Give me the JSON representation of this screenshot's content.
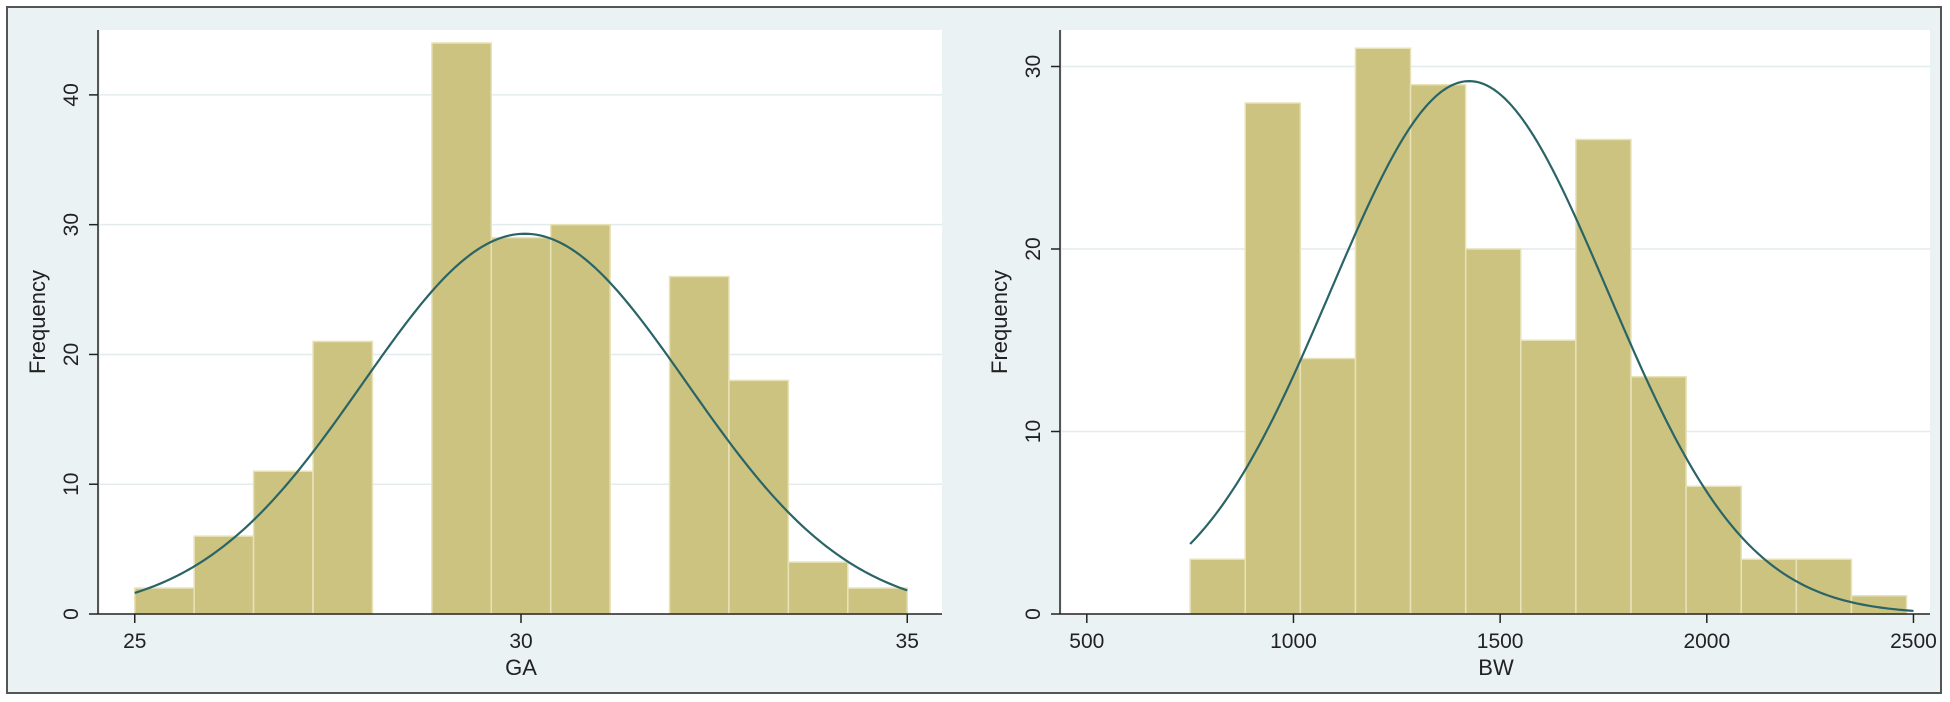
{
  "colors": {
    "background": "#eaf2f3",
    "plot_region": "#ffffff",
    "bar_fill": "#cbc37f",
    "bar_edge": "#e8e2b8",
    "curve": "#2a6466",
    "grid": "#e3eced",
    "frame": "#555555"
  },
  "chart_data": [
    {
      "type": "bar",
      "xlabel": "GA",
      "ylabel": "Frequency",
      "xlim": [
        24.55,
        35.45
      ],
      "ylim": [
        0,
        45
      ],
      "xticks": [
        25,
        30,
        35
      ],
      "yticks": [
        0,
        10,
        20,
        30,
        40
      ],
      "grid": true,
      "bin_width": 0.769,
      "bins": [
        {
          "start": 25.0,
          "count": 2
        },
        {
          "start": 25.769,
          "count": 6
        },
        {
          "start": 26.538,
          "count": 11
        },
        {
          "start": 27.308,
          "count": 21
        },
        {
          "start": 28.846,
          "count": 44
        },
        {
          "start": 29.615,
          "count": 29
        },
        {
          "start": 30.385,
          "count": 30
        },
        {
          "start": 31.923,
          "count": 26
        },
        {
          "start": 32.692,
          "count": 18
        },
        {
          "start": 33.462,
          "count": 4
        },
        {
          "start": 34.231,
          "count": 2
        }
      ],
      "normal_curve": {
        "mean": 30.05,
        "sd": 2.1,
        "peak": 29.3,
        "x_range": [
          25,
          35
        ]
      }
    },
    {
      "type": "bar",
      "xlabel": "BW",
      "ylabel": "Frequency",
      "xlim": [
        440,
        2540
      ],
      "ylim": [
        0,
        32
      ],
      "xticks": [
        500,
        1000,
        1500,
        2000,
        2500
      ],
      "yticks": [
        0,
        10,
        20,
        30
      ],
      "grid": true,
      "bin_width": 133.3,
      "bins": [
        {
          "start": 750,
          "count": 3
        },
        {
          "start": 883.3,
          "count": 28
        },
        {
          "start": 1016.7,
          "count": 14
        },
        {
          "start": 1150,
          "count": 31
        },
        {
          "start": 1283.3,
          "count": 29
        },
        {
          "start": 1416.7,
          "count": 20
        },
        {
          "start": 1550,
          "count": 15
        },
        {
          "start": 1683.3,
          "count": 26
        },
        {
          "start": 1816.7,
          "count": 13
        },
        {
          "start": 1950,
          "count": 7
        },
        {
          "start": 2083.3,
          "count": 3
        },
        {
          "start": 2216.7,
          "count": 3
        },
        {
          "start": 2350,
          "count": 1
        }
      ],
      "normal_curve": {
        "mean": 1425,
        "sd": 335,
        "peak": 29.2,
        "x_range": [
          750,
          2500
        ]
      }
    }
  ]
}
